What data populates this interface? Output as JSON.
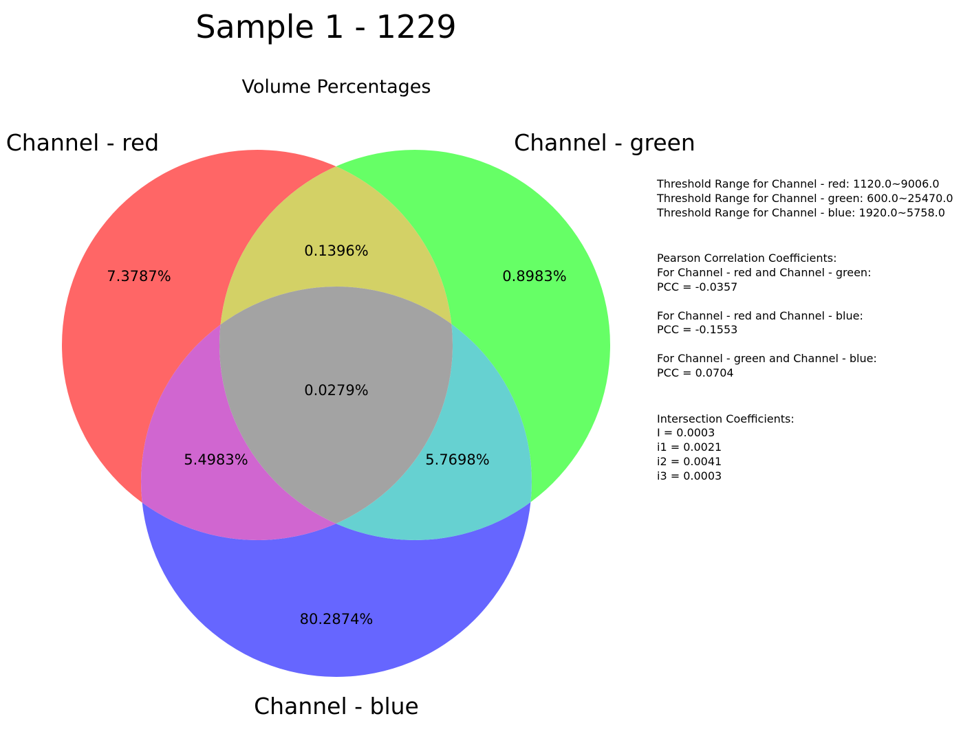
{
  "title": "Sample 1 - 1229",
  "subtitle": "Volume Percentages",
  "set_labels": {
    "red": "Channel - red",
    "green": "Channel - green",
    "blue": "Channel - blue"
  },
  "colors": {
    "red": "#ff0000",
    "green": "#00ff00",
    "blue": "#0000ff",
    "red_only": "#ff6666",
    "green_only": "#66ff66",
    "blue_only": "#6666ff",
    "red_green": "#d3d166",
    "red_blue": "#d066d0",
    "green_blue": "#66d1d1",
    "all_three": "#a3a3a3"
  },
  "regions": {
    "red_only": "7.3787%",
    "green_only": "0.8983%",
    "blue_only": "80.2874%",
    "red_green": "0.1396%",
    "red_blue": "5.4983%",
    "green_blue": "5.7698%",
    "all_three": "0.0279%"
  },
  "thresholds": [
    "Threshold Range for Channel - red: 1120.0~9006.0",
    "Threshold Range for Channel - green: 600.0~25470.0",
    "Threshold Range for Channel - blue: 1920.0~5758.0"
  ],
  "pearson": {
    "heading": "Pearson Correlation Coefficients:",
    "pairs": [
      {
        "label": "For Channel - red and Channel - green:",
        "value": "PCC = -0.0357"
      },
      {
        "label": "For Channel - red and Channel - blue:",
        "value": "PCC = -0.1553"
      },
      {
        "label": "For Channel - green and Channel - blue:",
        "value": "PCC = 0.0704"
      }
    ]
  },
  "intersection": {
    "heading": "Intersection Coefficients:",
    "items": [
      "I = 0.0003",
      "i1 = 0.0021",
      "i2 = 0.0041",
      "i3 = 0.0003"
    ]
  }
}
